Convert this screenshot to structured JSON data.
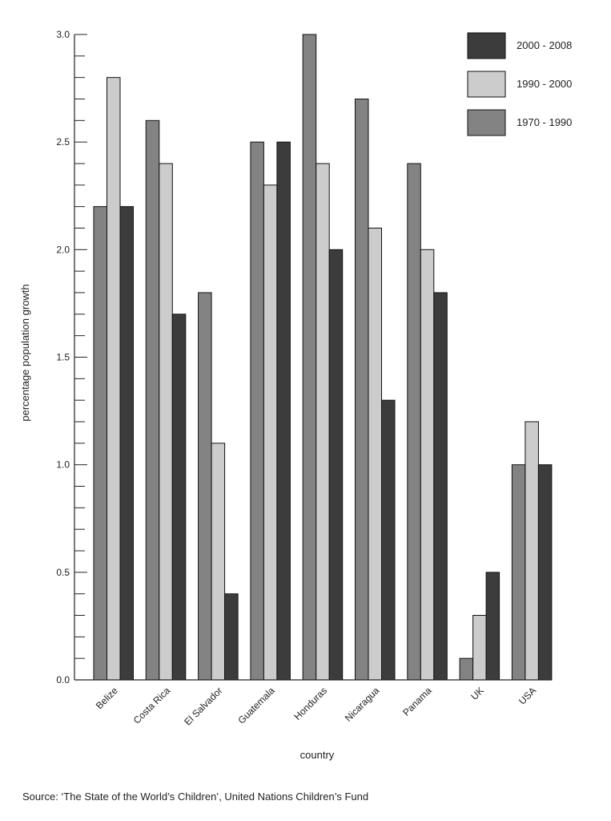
{
  "chart_data": {
    "type": "bar",
    "title": "",
    "xlabel": "country",
    "ylabel": "percentage population growth",
    "ylim": [
      0,
      3.0
    ],
    "y_ticks": [
      "0.0",
      "0.5",
      "1.0",
      "1.5",
      "2.0",
      "2.5",
      "3.0"
    ],
    "y_minor_step": 0.1,
    "grid": false,
    "legend_position": "top-right",
    "categories": [
      "Belize",
      "Costa Rica",
      "El Salvador",
      "Guatemala",
      "Honduras",
      "Nicaragua",
      "Panama",
      "UK",
      "USA"
    ],
    "series": [
      {
        "name": "1970 - 1990",
        "color": "#838383",
        "values": [
          2.2,
          2.6,
          1.8,
          2.5,
          3.0,
          2.7,
          2.4,
          0.1,
          1.0
        ]
      },
      {
        "name": "1990 - 2000",
        "color": "#cccccc",
        "values": [
          2.8,
          2.4,
          1.1,
          2.3,
          2.4,
          2.1,
          2.0,
          0.3,
          1.2
        ]
      },
      {
        "name": "2000 - 2008",
        "color": "#3c3c3c",
        "values": [
          2.2,
          1.7,
          0.4,
          2.5,
          2.0,
          1.3,
          1.8,
          0.5,
          1.0
        ]
      }
    ],
    "legend_order": [
      "2000 - 2008",
      "1990 - 2000",
      "1970 - 1990"
    ],
    "source": "Source: ‘The State of the World’s Children’, United Nations Children’s Fund"
  }
}
